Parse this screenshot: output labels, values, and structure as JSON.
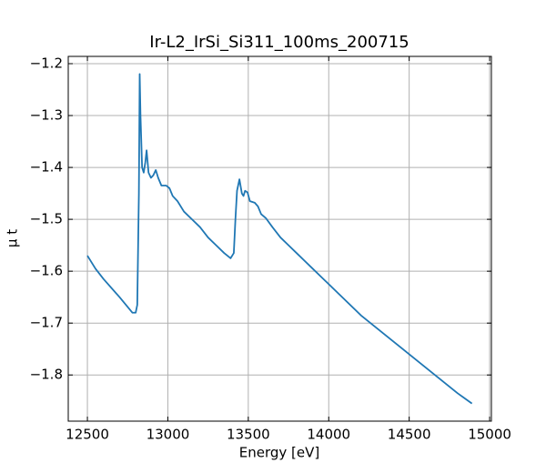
{
  "chart_data": {
    "type": "line",
    "title": "Ir-L2_IrSi_Si311_100ms_200715",
    "xlabel": "Energy [eV]",
    "ylabel": "μ t",
    "x": [
      12500,
      12550,
      12600,
      12700,
      12780,
      12800,
      12810,
      12820,
      12825,
      12830,
      12840,
      12850,
      12860,
      12868,
      12880,
      12895,
      12910,
      12925,
      12940,
      12960,
      12990,
      13010,
      13030,
      13060,
      13100,
      13150,
      13200,
      13250,
      13300,
      13350,
      13390,
      13410,
      13420,
      13430,
      13445,
      13460,
      13470,
      13480,
      13495,
      13510,
      13540,
      13560,
      13580,
      13610,
      13650,
      13700,
      13750,
      13800,
      13850,
      13900,
      13950,
      14000,
      14100,
      14200,
      14300,
      14400,
      14500,
      14600,
      14700,
      14800,
      14890
    ],
    "series": [
      {
        "color": "#1f77b4",
        "values": [
          -1.57,
          -1.595,
          -1.615,
          -1.65,
          -1.68,
          -1.68,
          -1.665,
          -1.45,
          -1.22,
          -1.3,
          -1.4,
          -1.41,
          -1.39,
          -1.367,
          -1.41,
          -1.42,
          -1.415,
          -1.405,
          -1.42,
          -1.435,
          -1.435,
          -1.44,
          -1.455,
          -1.465,
          -1.485,
          -1.5,
          -1.515,
          -1.535,
          -1.55,
          -1.565,
          -1.575,
          -1.565,
          -1.5,
          -1.445,
          -1.423,
          -1.45,
          -1.455,
          -1.445,
          -1.448,
          -1.465,
          -1.468,
          -1.475,
          -1.49,
          -1.498,
          -1.515,
          -1.535,
          -1.55,
          -1.565,
          -1.58,
          -1.595,
          -1.61,
          -1.625,
          -1.655,
          -1.685,
          -1.71,
          -1.735,
          -1.76,
          -1.785,
          -1.81,
          -1.835,
          -1.855
        ]
      }
    ],
    "xlim": [
      12381,
      15011
    ],
    "ylim": [
      -1.889,
      -1.186
    ],
    "xticks": [
      12500,
      13000,
      13500,
      14000,
      14500,
      15000
    ],
    "yticks": [
      {
        "value": -1.8,
        "label": "−1.8"
      },
      {
        "value": -1.7,
        "label": "−1.7"
      },
      {
        "value": -1.6,
        "label": "−1.6"
      },
      {
        "value": -1.5,
        "label": "−1.5"
      },
      {
        "value": -1.4,
        "label": "−1.4"
      },
      {
        "value": -1.3,
        "label": "−1.3"
      },
      {
        "value": -1.2,
        "label": "−1.2"
      }
    ],
    "grid": true
  }
}
